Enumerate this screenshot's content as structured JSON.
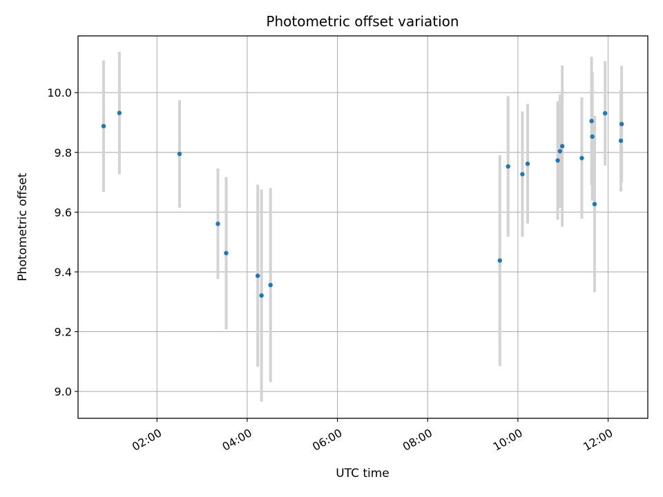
{
  "chart_data": {
    "type": "scatter",
    "title": "Photometric offset variation",
    "xlabel": "UTC time",
    "ylabel": "Photometric offset",
    "x_ticks": [
      "02:00",
      "04:00",
      "06:00",
      "08:00",
      "10:00",
      "12:00"
    ],
    "x_tick_hours": [
      2,
      4,
      6,
      8,
      10,
      12
    ],
    "y_ticks": [
      "9.0",
      "9.2",
      "9.4",
      "9.6",
      "9.8",
      "10.0"
    ],
    "y_tick_values": [
      9.0,
      9.2,
      9.4,
      9.6,
      9.8,
      10.0
    ],
    "xlim_hours": [
      0.25,
      12.88
    ],
    "ylim": [
      8.91,
      10.19
    ],
    "grid": true,
    "point_color": "#1f77b4",
    "errorbar_color": "#d3d3d3",
    "points": [
      {
        "t": "00:49",
        "y": 9.888,
        "yerr": 0.22
      },
      {
        "t": "01:10",
        "y": 9.932,
        "yerr": 0.205
      },
      {
        "t": "02:30",
        "y": 9.795,
        "yerr": 0.18
      },
      {
        "t": "03:21",
        "y": 9.561,
        "yerr": 0.185
      },
      {
        "t": "03:32",
        "y": 9.463,
        "yerr": 0.255
      },
      {
        "t": "04:14",
        "y": 9.387,
        "yerr": 0.305
      },
      {
        "t": "04:19",
        "y": 9.321,
        "yerr": 0.355
      },
      {
        "t": "04:31",
        "y": 9.356,
        "yerr": 0.325
      },
      {
        "t": "09:36",
        "y": 9.438,
        "yerr": 0.353
      },
      {
        "t": "09:47",
        "y": 9.753,
        "yerr": 0.235
      },
      {
        "t": "10:06",
        "y": 9.727,
        "yerr": 0.21
      },
      {
        "t": "10:13",
        "y": 9.762,
        "yerr": 0.2
      },
      {
        "t": "10:53",
        "y": 9.773,
        "yerr": 0.198
      },
      {
        "t": "10:56",
        "y": 9.804,
        "yerr": 0.19
      },
      {
        "t": "10:59",
        "y": 9.821,
        "yerr": 0.27
      },
      {
        "t": "11:25",
        "y": 9.781,
        "yerr": 0.203
      },
      {
        "t": "11:38",
        "y": 9.905,
        "yerr": 0.215
      },
      {
        "t": "11:39",
        "y": 9.853,
        "yerr": 0.215
      },
      {
        "t": "11:42",
        "y": 9.627,
        "yerr": 0.295
      },
      {
        "t": "11:56",
        "y": 9.931,
        "yerr": 0.175
      },
      {
        "t": "12:17",
        "y": 9.839,
        "yerr": 0.17
      },
      {
        "t": "12:18",
        "y": 9.895,
        "yerr": 0.195
      }
    ]
  }
}
